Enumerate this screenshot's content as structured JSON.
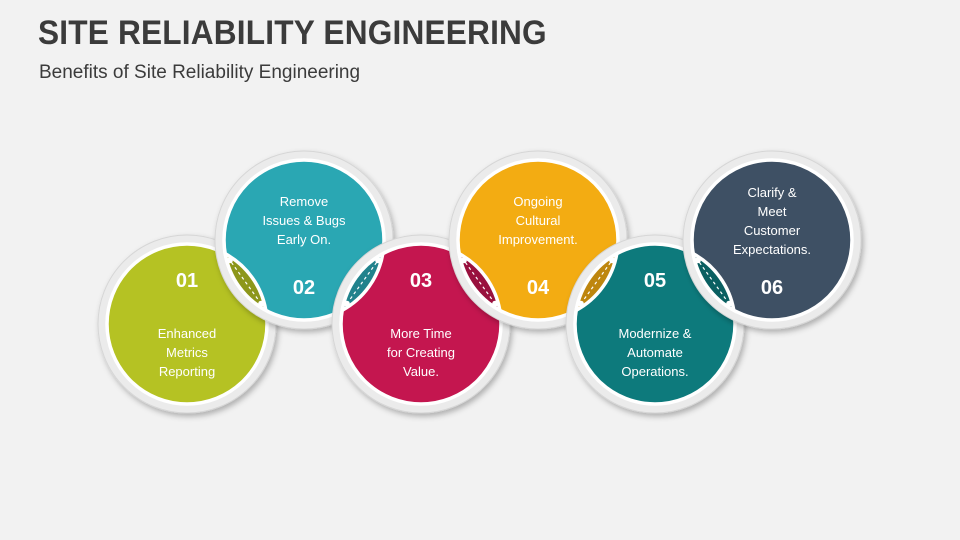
{
  "header": {
    "title": "SITE RELIABILITY ENGINEERING",
    "subtitle": "Benefits of Site Reliability Engineering"
  },
  "items": [
    {
      "number": "01",
      "lines": [
        "Enhanced",
        "Metrics",
        "Reporting"
      ],
      "color": "#b5c223"
    },
    {
      "number": "02",
      "lines": [
        "Remove",
        "Issues & Bugs",
        "Early On."
      ],
      "color": "#2aa7b3"
    },
    {
      "number": "03",
      "lines": [
        "More Time",
        "for Creating",
        "Value."
      ],
      "color": "#c4164f"
    },
    {
      "number": "04",
      "lines": [
        "Ongoing",
        "Cultural",
        "Improvement."
      ],
      "color": "#f3ac12"
    },
    {
      "number": "05",
      "lines": [
        "Modernize &",
        "Automate",
        "Operations."
      ],
      "color": "#0d7a7c"
    },
    {
      "number": "06",
      "lines": [
        "Clarify &",
        "Meet",
        "Customer",
        "Expectations."
      ],
      "color": "#3e5064"
    }
  ]
}
